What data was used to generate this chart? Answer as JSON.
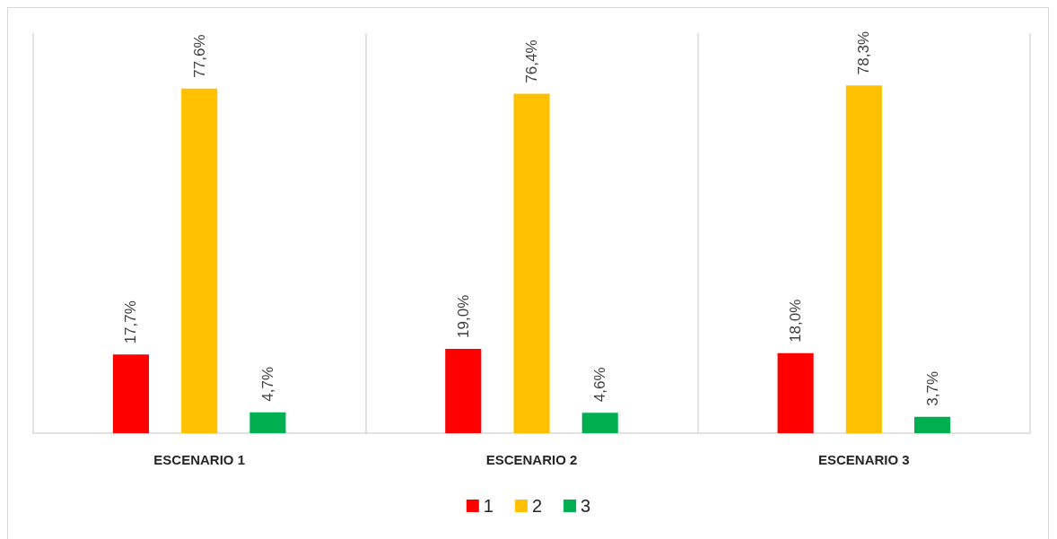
{
  "chart_data": {
    "type": "bar",
    "categories": [
      "ESCENARIO 1",
      "ESCENARIO 2",
      "ESCENARIO 3"
    ],
    "series": [
      {
        "name": "1",
        "color": "#ff0000",
        "values": [
          17.7,
          19.0,
          18.0
        ],
        "value_labels": [
          "17,7%",
          "19,0%",
          "18,0%"
        ]
      },
      {
        "name": "2",
        "color": "#ffc000",
        "values": [
          77.6,
          76.4,
          78.3
        ],
        "value_labels": [
          "77,6%",
          "76,4%",
          "78,3%"
        ]
      },
      {
        "name": "3",
        "color": "#00b050",
        "values": [
          4.7,
          4.6,
          3.7
        ],
        "value_labels": [
          "4,7%",
          "4,6%",
          "3,7%"
        ]
      }
    ],
    "grid": "x",
    "legend": "bottom"
  }
}
